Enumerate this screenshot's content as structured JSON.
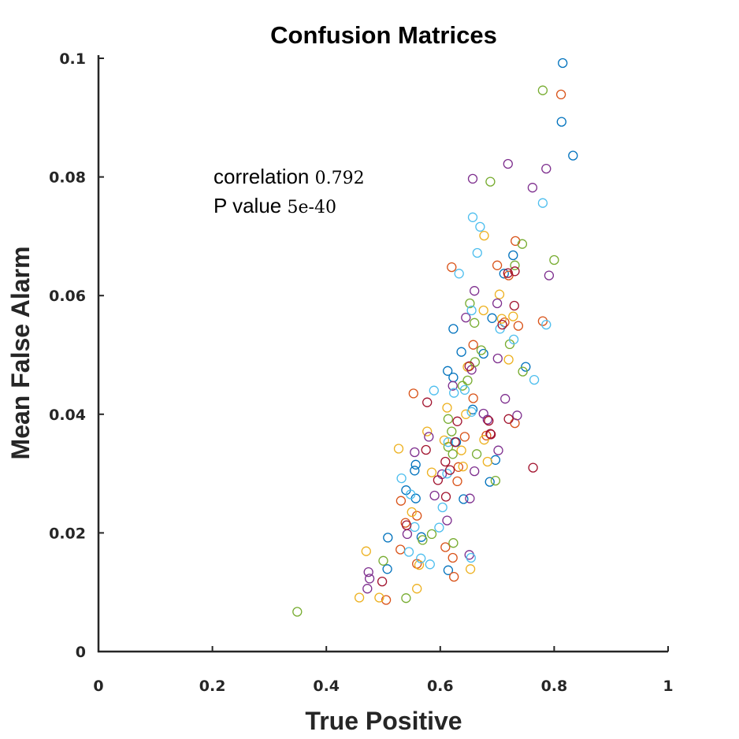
{
  "chart_data": {
    "type": "scatter",
    "title": "Confusion Matrices",
    "xlabel": "True Positive",
    "ylabel": "Mean False Alarm",
    "xlim": [
      0,
      1
    ],
    "ylim": [
      0,
      0.1
    ],
    "x_ticks": [
      "0",
      "0.2",
      "0.4",
      "0.6",
      "0.8",
      "1"
    ],
    "y_ticks": [
      "0",
      "0.02",
      "0.04",
      "0.06",
      "0.08",
      "0.1"
    ],
    "grid": false,
    "legend": "none",
    "annotation": {
      "line1_label": "correlation",
      "line1_value": "0.792",
      "line2_label": "P value",
      "line2_value": "5e-40"
    },
    "colors": [
      "#0072BD",
      "#D95319",
      "#EDB120",
      "#7E2F8E",
      "#77AC30",
      "#4DBEEE",
      "#A2142F"
    ],
    "points": [
      [
        0.815,
        0.0992,
        0
      ],
      [
        0.813,
        0.0893,
        0
      ],
      [
        0.833,
        0.0836,
        0
      ],
      [
        0.728,
        0.0668,
        0
      ],
      [
        0.712,
        0.0637,
        0
      ],
      [
        0.623,
        0.0544,
        0
      ],
      [
        0.637,
        0.0505,
        0
      ],
      [
        0.676,
        0.0502,
        0
      ],
      [
        0.691,
        0.0562,
        0
      ],
      [
        0.75,
        0.048,
        0
      ],
      [
        0.613,
        0.0473,
        0
      ],
      [
        0.623,
        0.0462,
        0
      ],
      [
        0.657,
        0.0408,
        0
      ],
      [
        0.555,
        0.0305,
        0
      ],
      [
        0.557,
        0.0315,
        0
      ],
      [
        0.54,
        0.0272,
        0
      ],
      [
        0.557,
        0.0258,
        0
      ],
      [
        0.641,
        0.0257,
        0
      ],
      [
        0.697,
        0.0323,
        0
      ],
      [
        0.687,
        0.0286,
        0
      ],
      [
        0.567,
        0.0193,
        0
      ],
      [
        0.508,
        0.0192,
        0
      ],
      [
        0.507,
        0.0139,
        0
      ],
      [
        0.614,
        0.0137,
        0
      ],
      [
        0.628,
        0.0353,
        0
      ],
      [
        0.812,
        0.0939,
        1
      ],
      [
        0.7,
        0.0651,
        1
      ],
      [
        0.62,
        0.0648,
        1
      ],
      [
        0.72,
        0.0634,
        1
      ],
      [
        0.732,
        0.0692,
        1
      ],
      [
        0.737,
        0.0549,
        1
      ],
      [
        0.713,
        0.0555,
        1
      ],
      [
        0.658,
        0.0517,
        1
      ],
      [
        0.553,
        0.0435,
        1
      ],
      [
        0.658,
        0.0427,
        1
      ],
      [
        0.78,
        0.0557,
        1
      ],
      [
        0.731,
        0.0385,
        1
      ],
      [
        0.681,
        0.0364,
        1
      ],
      [
        0.632,
        0.0311,
        1
      ],
      [
        0.63,
        0.0287,
        1
      ],
      [
        0.559,
        0.0229,
        1
      ],
      [
        0.539,
        0.0217,
        1
      ],
      [
        0.531,
        0.0254,
        1
      ],
      [
        0.53,
        0.0172,
        1
      ],
      [
        0.559,
        0.0148,
        1
      ],
      [
        0.622,
        0.0158,
        1
      ],
      [
        0.624,
        0.0126,
        1
      ],
      [
        0.505,
        0.0087,
        1
      ],
      [
        0.609,
        0.0176,
        1
      ],
      [
        0.643,
        0.0362,
        1
      ],
      [
        0.677,
        0.0701,
        2
      ],
      [
        0.704,
        0.0602,
        2
      ],
      [
        0.676,
        0.0575,
        2
      ],
      [
        0.728,
        0.0565,
        2
      ],
      [
        0.708,
        0.0561,
        2
      ],
      [
        0.72,
        0.0492,
        2
      ],
      [
        0.648,
        0.048,
        2
      ],
      [
        0.612,
        0.0411,
        2
      ],
      [
        0.645,
        0.04,
        2
      ],
      [
        0.577,
        0.0371,
        2
      ],
      [
        0.607,
        0.0356,
        2
      ],
      [
        0.637,
        0.0339,
        2
      ],
      [
        0.527,
        0.0342,
        2
      ],
      [
        0.585,
        0.0302,
        2
      ],
      [
        0.683,
        0.032,
        2
      ],
      [
        0.55,
        0.0235,
        2
      ],
      [
        0.563,
        0.0146,
        2
      ],
      [
        0.47,
        0.0169,
        2
      ],
      [
        0.559,
        0.0106,
        2
      ],
      [
        0.458,
        0.0091,
        2
      ],
      [
        0.493,
        0.0091,
        2
      ],
      [
        0.653,
        0.0139,
        2
      ],
      [
        0.64,
        0.0312,
        2
      ],
      [
        0.677,
        0.0357,
        2
      ],
      [
        0.657,
        0.0797,
        3
      ],
      [
        0.719,
        0.0822,
        3
      ],
      [
        0.786,
        0.0814,
        3
      ],
      [
        0.762,
        0.0782,
        3
      ],
      [
        0.791,
        0.0634,
        3
      ],
      [
        0.66,
        0.0608,
        3
      ],
      [
        0.7,
        0.0587,
        3
      ],
      [
        0.701,
        0.0494,
        3
      ],
      [
        0.645,
        0.0563,
        3
      ],
      [
        0.622,
        0.0448,
        3
      ],
      [
        0.655,
        0.0475,
        3
      ],
      [
        0.714,
        0.0426,
        3
      ],
      [
        0.735,
        0.0398,
        3
      ],
      [
        0.676,
        0.0401,
        3
      ],
      [
        0.58,
        0.0362,
        3
      ],
      [
        0.555,
        0.0336,
        3
      ],
      [
        0.603,
        0.0299,
        3
      ],
      [
        0.66,
        0.0304,
        3
      ],
      [
        0.702,
        0.0339,
        3
      ],
      [
        0.59,
        0.0263,
        3
      ],
      [
        0.612,
        0.0221,
        3
      ],
      [
        0.652,
        0.0258,
        3
      ],
      [
        0.542,
        0.0198,
        3
      ],
      [
        0.474,
        0.0134,
        3
      ],
      [
        0.476,
        0.0123,
        3
      ],
      [
        0.472,
        0.0106,
        3
      ],
      [
        0.651,
        0.0163,
        3
      ],
      [
        0.683,
        0.0391,
        3
      ],
      [
        0.78,
        0.0946,
        4
      ],
      [
        0.688,
        0.0792,
        4
      ],
      [
        0.8,
        0.066,
        4
      ],
      [
        0.744,
        0.0687,
        4
      ],
      [
        0.731,
        0.0651,
        4
      ],
      [
        0.66,
        0.0554,
        4
      ],
      [
        0.652,
        0.0587,
        4
      ],
      [
        0.672,
        0.0508,
        4
      ],
      [
        0.722,
        0.0518,
        4
      ],
      [
        0.661,
        0.0488,
        4
      ],
      [
        0.639,
        0.0448,
        4
      ],
      [
        0.648,
        0.0457,
        4
      ],
      [
        0.745,
        0.0472,
        4
      ],
      [
        0.614,
        0.0392,
        4
      ],
      [
        0.62,
        0.0371,
        4
      ],
      [
        0.614,
        0.0345,
        4
      ],
      [
        0.622,
        0.0333,
        4
      ],
      [
        0.664,
        0.0333,
        4
      ],
      [
        0.697,
        0.0288,
        4
      ],
      [
        0.623,
        0.0183,
        4
      ],
      [
        0.585,
        0.0198,
        4
      ],
      [
        0.569,
        0.0188,
        4
      ],
      [
        0.54,
        0.009,
        4
      ],
      [
        0.349,
        0.0067,
        4
      ],
      [
        0.5,
        0.0153,
        4
      ],
      [
        0.67,
        0.0716,
        5
      ],
      [
        0.78,
        0.0756,
        5
      ],
      [
        0.657,
        0.0732,
        5
      ],
      [
        0.665,
        0.0672,
        5
      ],
      [
        0.633,
        0.0637,
        5
      ],
      [
        0.655,
        0.0575,
        5
      ],
      [
        0.786,
        0.0551,
        5
      ],
      [
        0.705,
        0.0544,
        5
      ],
      [
        0.729,
        0.0526,
        5
      ],
      [
        0.765,
        0.0458,
        5
      ],
      [
        0.589,
        0.044,
        5
      ],
      [
        0.624,
        0.0436,
        5
      ],
      [
        0.643,
        0.0441,
        5
      ],
      [
        0.655,
        0.0404,
        5
      ],
      [
        0.532,
        0.0292,
        5
      ],
      [
        0.612,
        0.03,
        5
      ],
      [
        0.598,
        0.0209,
        5
      ],
      [
        0.548,
        0.0265,
        5
      ],
      [
        0.555,
        0.021,
        5
      ],
      [
        0.545,
        0.0168,
        5
      ],
      [
        0.566,
        0.0157,
        5
      ],
      [
        0.582,
        0.0147,
        5
      ],
      [
        0.604,
        0.0243,
        5
      ],
      [
        0.654,
        0.0158,
        5
      ],
      [
        0.614,
        0.0353,
        5
      ],
      [
        0.73,
        0.0583,
        6
      ],
      [
        0.719,
        0.0638,
        6
      ],
      [
        0.709,
        0.0551,
        6
      ],
      [
        0.72,
        0.0392,
        6
      ],
      [
        0.685,
        0.0389,
        6
      ],
      [
        0.688,
        0.0367,
        6
      ],
      [
        0.626,
        0.0353,
        6
      ],
      [
        0.575,
        0.034,
        6
      ],
      [
        0.577,
        0.042,
        6
      ],
      [
        0.617,
        0.0306,
        6
      ],
      [
        0.61,
        0.0261,
        6
      ],
      [
        0.689,
        0.0366,
        6
      ],
      [
        0.763,
        0.031,
        6
      ],
      [
        0.731,
        0.0641,
        6
      ],
      [
        0.498,
        0.0118,
        6
      ],
      [
        0.541,
        0.0213,
        6
      ],
      [
        0.596,
        0.0289,
        6
      ],
      [
        0.63,
        0.0388,
        6
      ],
      [
        0.609,
        0.032,
        6
      ],
      [
        0.651,
        0.0481,
        6
      ]
    ]
  }
}
